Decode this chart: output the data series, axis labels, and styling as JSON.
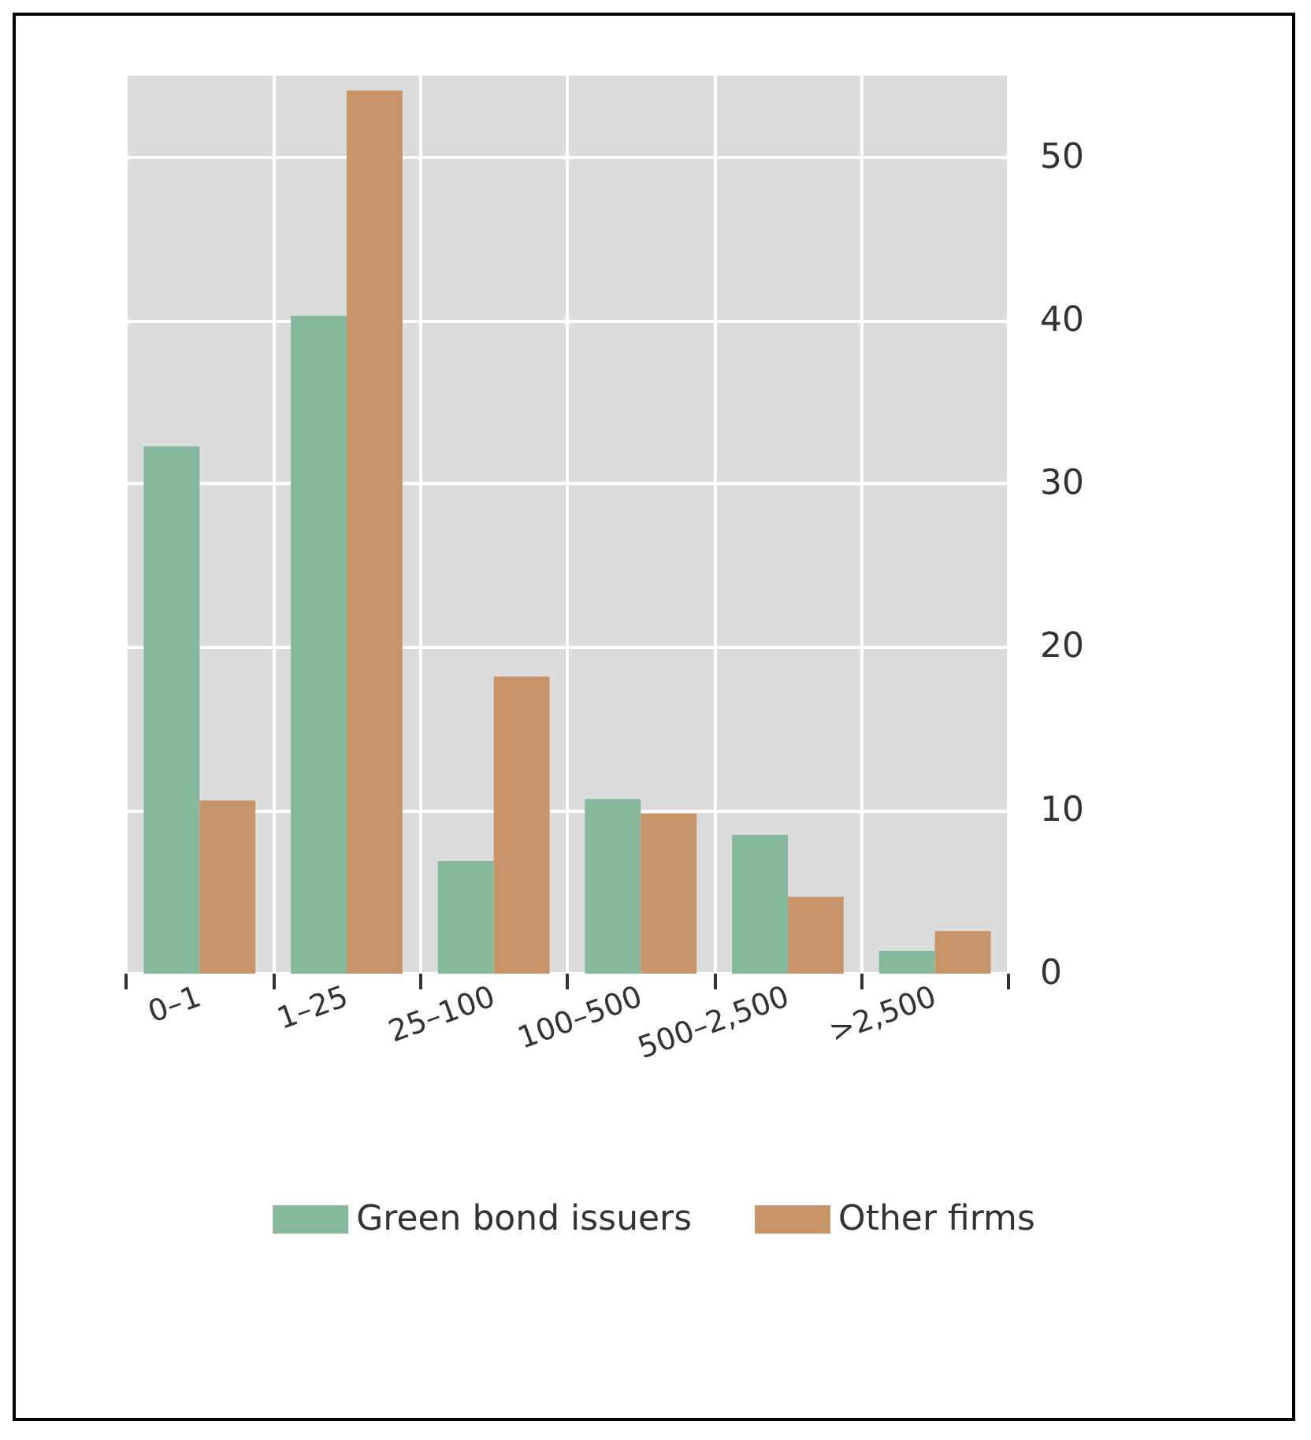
{
  "chart_data": {
    "type": "bar",
    "categories": [
      "0–1",
      "1–25",
      "25–100",
      "100–500",
      "500–2,500",
      ">2,500"
    ],
    "series": [
      {
        "name": "Green bond issuers",
        "color": "#86b89c",
        "values": [
          32.3,
          40.3,
          6.9,
          10.7,
          8.5,
          1.4
        ]
      },
      {
        "name": "Other firms",
        "color": "#c8956b",
        "values": [
          10.6,
          54.1,
          18.2,
          9.8,
          4.7,
          2.6
        ]
      }
    ],
    "ylim": [
      0,
      55
    ],
    "yticks": [
      0,
      10,
      20,
      30,
      40,
      50
    ],
    "grid": true,
    "legend": "bottom"
  }
}
